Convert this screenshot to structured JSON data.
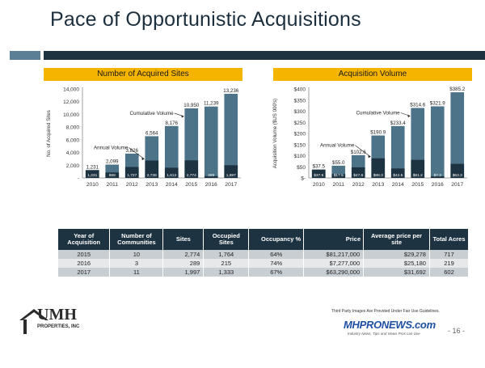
{
  "page": {
    "title": "Pace of Opportunistic Acquisitions",
    "page_number": "- 16 -"
  },
  "chart_data": [
    {
      "type": "bar",
      "title": "Number of Acquired Sites",
      "ylabel": "No. of Acquired Sites",
      "categories": [
        "2010",
        "2011",
        "2012",
        "2013",
        "2014",
        "2015",
        "2016",
        "2017"
      ],
      "series": [
        {
          "name": "Cumulative Volume",
          "values": [
            1231,
            2099,
            3826,
            6564,
            8176,
            10950,
            11239,
            13236
          ],
          "labels": [
            "1,231",
            "2,099",
            "3,826",
            "6,564",
            "8,176",
            "10,950",
            "11,239",
            "13,236"
          ]
        },
        {
          "name": "Annual Volume",
          "values": [
            1231,
            868,
            1727,
            2738,
            1612,
            2774,
            289,
            1997
          ],
          "labels": [
            "1,231",
            "868",
            "1,727",
            "2,738",
            "1,612",
            "2,774",
            "289",
            "1,997"
          ]
        }
      ],
      "ylim": [
        0,
        14000
      ],
      "yticks": [
        0,
        2000,
        4000,
        6000,
        8000,
        10000,
        12000,
        14000
      ],
      "ytick_labels": [
        "-",
        "2,000",
        "4,000",
        "6,000",
        "8,000",
        "10,000",
        "12,000",
        "14,000"
      ],
      "annotations": [
        {
          "text": "Cumulative Volume",
          "points_to": "2015"
        },
        {
          "text": "Annual Volume",
          "points_to": "2013"
        }
      ],
      "colors": {
        "cumulative": "#4c7388",
        "annual": "#1e3341"
      },
      "grid": false
    },
    {
      "type": "bar",
      "title": "Acquisition Volume",
      "ylabel": "Acquisition Volume ($US 000's)",
      "categories": [
        "2010",
        "2011",
        "2012",
        "2013",
        "2014",
        "2015",
        "2016",
        "2017"
      ],
      "series": [
        {
          "name": "Cumulative Volume",
          "values": [
            37.5,
            55.0,
            102.6,
            190.9,
            233.4,
            314.6,
            321.9,
            385.2
          ],
          "labels": [
            "$37.5",
            "$55.0",
            "$102.6",
            "$190.9",
            "$233.4",
            "$314.6",
            "$321.9",
            "$385.2"
          ]
        },
        {
          "name": "Annual Volume",
          "values": [
            37.5,
            17.5,
            47.6,
            88.3,
            42.5,
            81.2,
            7.3,
            63.3
          ],
          "labels": [
            "$37.5",
            "$17.5",
            "$47.6",
            "$88.3",
            "$42.5",
            "$81.2",
            "$7.3",
            "$63.3"
          ]
        }
      ],
      "ylim": [
        0,
        400
      ],
      "yticks": [
        0,
        50,
        100,
        150,
        200,
        250,
        300,
        350,
        400
      ],
      "ytick_labels": [
        "$-",
        "$50",
        "$100",
        "$150",
        "$200",
        "$250",
        "$300",
        "$350",
        "$400"
      ],
      "annotations": [
        {
          "text": "Cumulative Volume",
          "points_to": "2015"
        },
        {
          "text": "Annual Volume",
          "points_to": "2013"
        }
      ],
      "colors": {
        "cumulative": "#4c7388",
        "annual": "#1e3341"
      },
      "grid": false
    }
  ],
  "table": {
    "headers": [
      "Year of Acquisition",
      "Number of Communities",
      "Sites",
      "Occupied Sites",
      "Occupancy %",
      "Price",
      "Average price per site",
      "Total Acres"
    ],
    "rows": [
      [
        "2015",
        "10",
        "2,774",
        "1,764",
        "64%",
        "$81,217,000",
        "$29,278",
        "717"
      ],
      [
        "2016",
        "3",
        "289",
        "215",
        "74%",
        "$7,277,000",
        "$25,180",
        "219"
      ],
      [
        "2017",
        "11",
        "1,997",
        "1,333",
        "67%",
        "$63,290,000",
        "$31,692",
        "602"
      ]
    ]
  },
  "footer": {
    "logo_name": "UMH",
    "logo_sub": "PROPERTIES, INC",
    "notice": "Third Party Images Are Provided Under Fair Use Guidelines.",
    "badge_text": "MHPRONEWS.com",
    "badge_tagline": "Industry News, Tips and Views Pros can Use"
  }
}
